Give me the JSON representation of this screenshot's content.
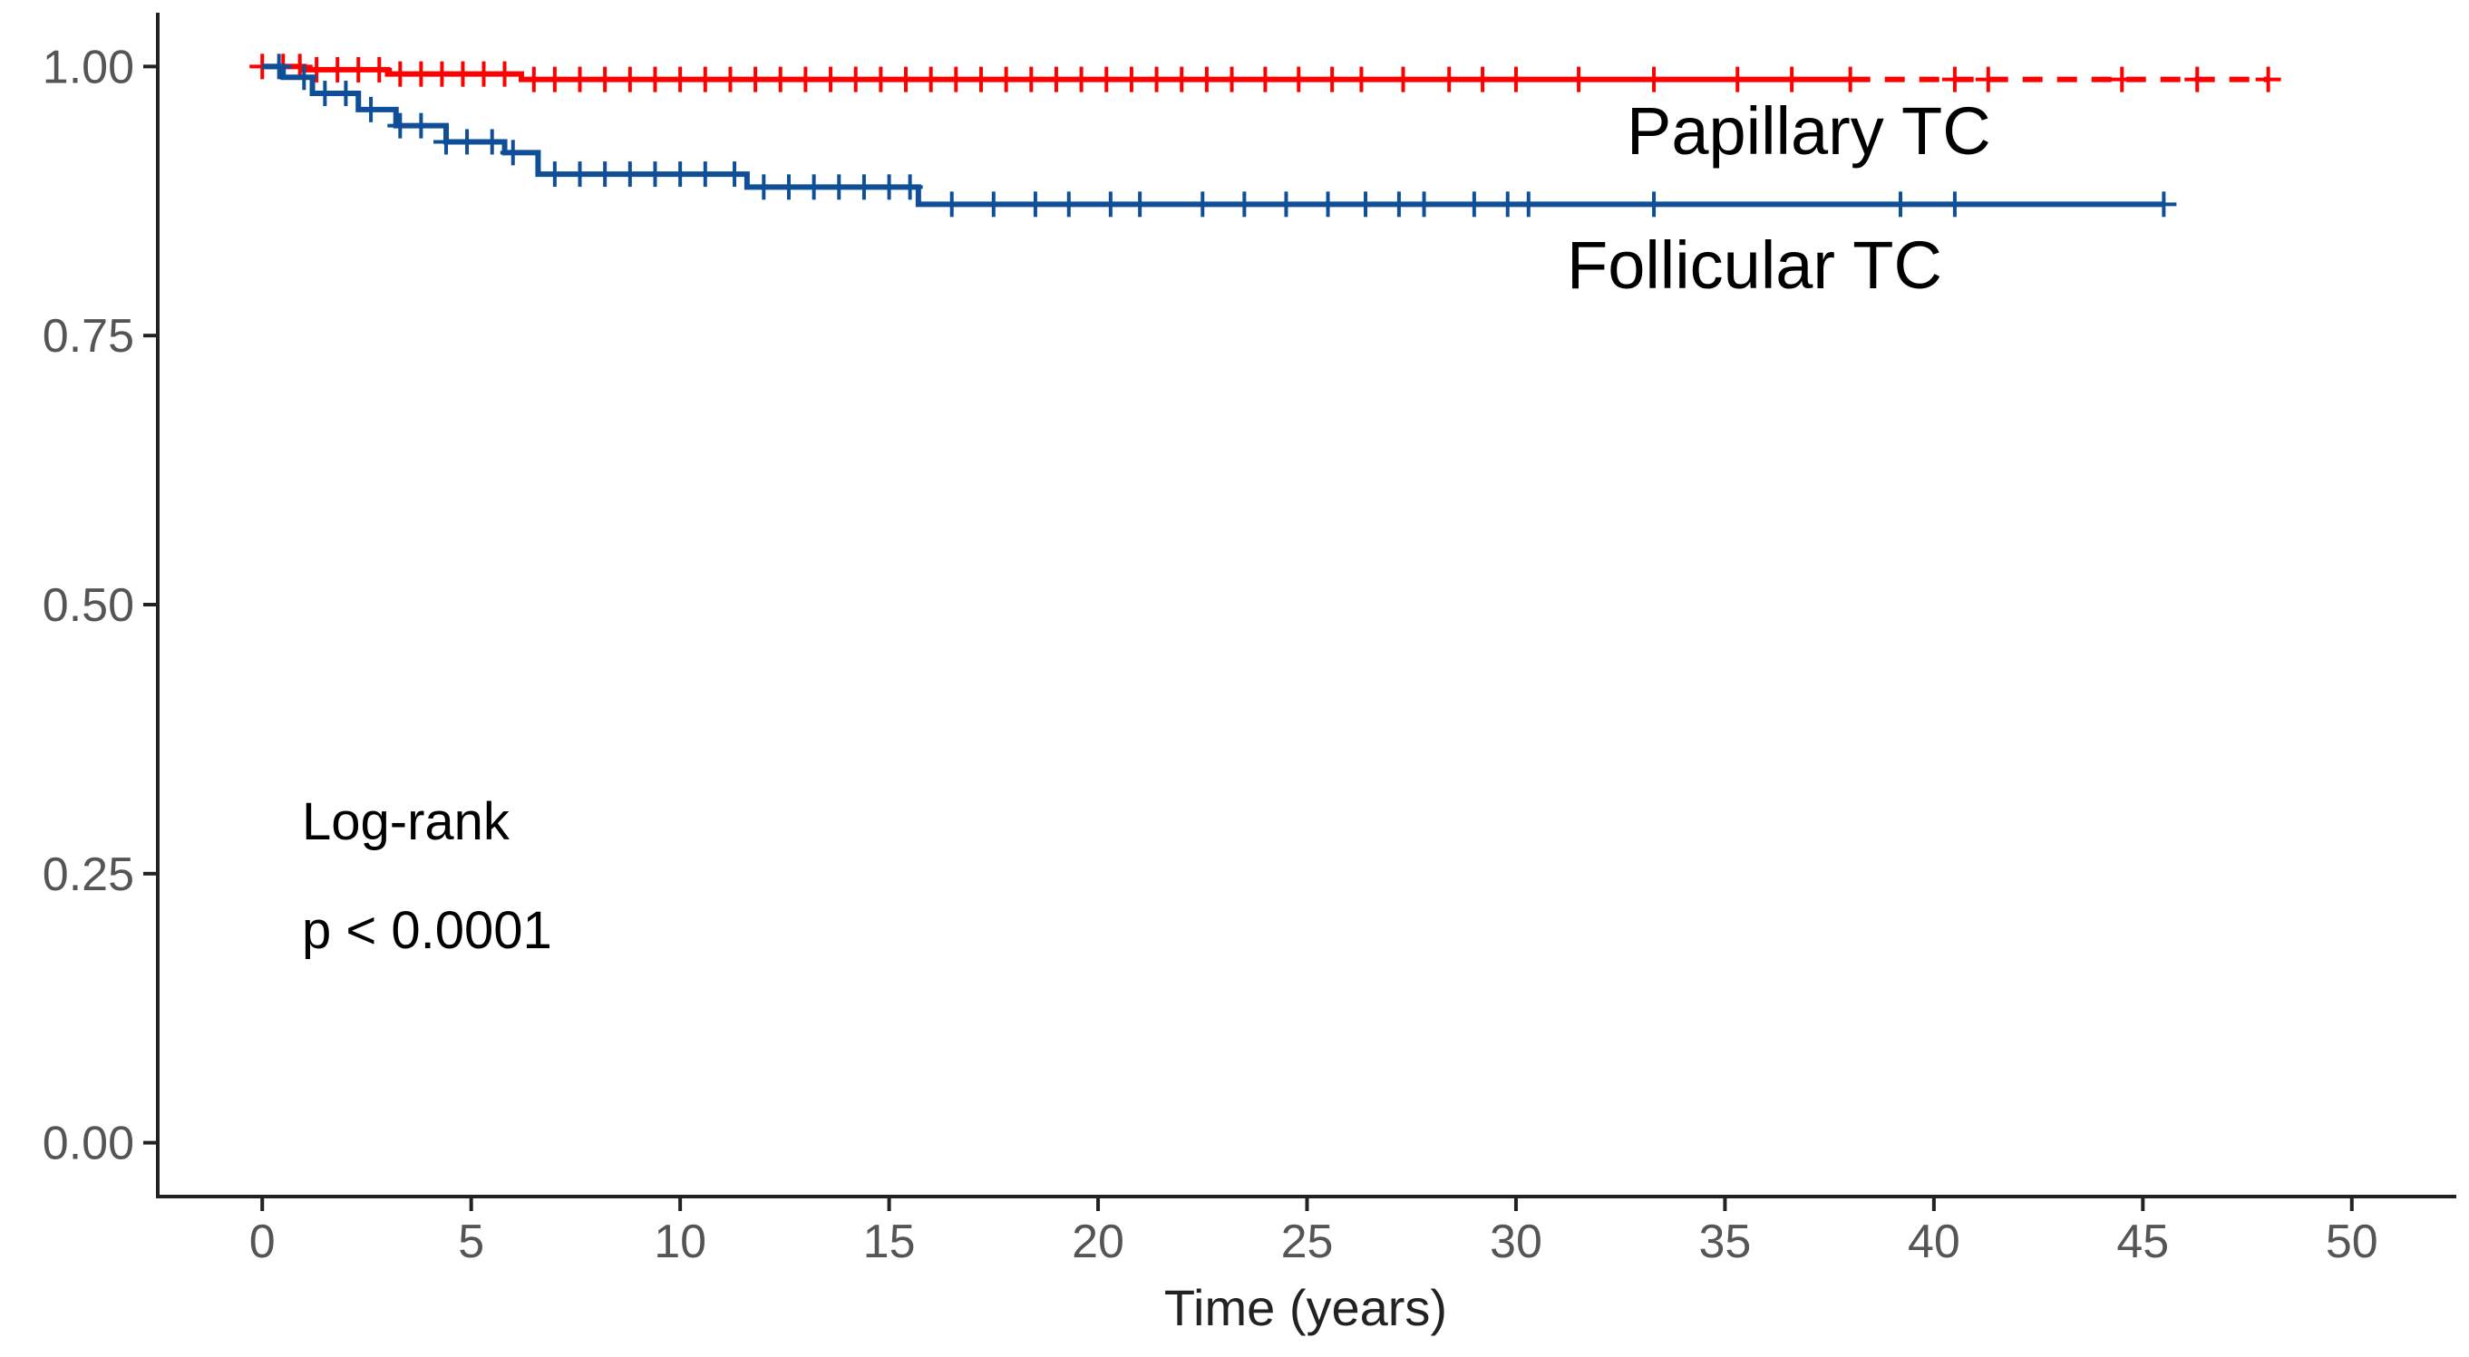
{
  "chart_data": {
    "type": "line",
    "xlabel": "Time (years)",
    "ylabel": "",
    "xlim": [
      -2.5,
      52.5
    ],
    "ylim": [
      -0.05,
      1.05
    ],
    "x_ticks": [
      0,
      5,
      10,
      15,
      20,
      25,
      30,
      35,
      40,
      45,
      50
    ],
    "x_tick_labels": [
      "0",
      "5",
      "10",
      "15",
      "20",
      "25",
      "30",
      "35",
      "40",
      "45",
      "50"
    ],
    "y_ticks": [
      0.0,
      0.25,
      0.5,
      0.75,
      1.0
    ],
    "y_tick_labels": [
      "0.00",
      "0.25",
      "0.50",
      "0.75",
      "1.00"
    ],
    "grid": false,
    "legend": "none",
    "series": [
      {
        "name": "Papillary TC",
        "color": "#ff0000",
        "line_style": "dashed-after-last-event",
        "steps": [
          [
            0,
            1.0
          ],
          [
            1.0,
            0.997
          ],
          [
            3.0,
            0.993
          ],
          [
            6.2,
            0.988
          ],
          [
            48.0,
            0.988
          ]
        ],
        "censor_times": [
          0,
          0.5,
          0.9,
          1.3,
          1.8,
          2.3,
          2.8,
          3.3,
          3.8,
          4.3,
          4.8,
          5.3,
          5.8,
          6.5,
          7.0,
          7.6,
          8.2,
          8.8,
          9.4,
          10.0,
          10.6,
          11.2,
          11.8,
          12.4,
          13.0,
          13.6,
          14.2,
          14.8,
          15.4,
          16.0,
          16.6,
          17.2,
          17.8,
          18.4,
          19.0,
          19.6,
          20.2,
          20.8,
          21.4,
          22.0,
          22.6,
          23.2,
          24.0,
          24.8,
          25.6,
          26.3,
          27.3,
          28.4,
          29.2,
          30.0,
          31.5,
          33.3,
          35.3,
          36.6,
          38.0,
          40.5,
          41.3,
          44.5,
          46.3,
          48.0
        ]
      },
      {
        "name": "Follicular TC",
        "color": "#0f4f97",
        "line_style": "solid",
        "steps": [
          [
            0,
            1.0
          ],
          [
            0.5,
            0.99
          ],
          [
            1.2,
            0.975
          ],
          [
            2.3,
            0.96
          ],
          [
            3.2,
            0.945
          ],
          [
            4.4,
            0.93
          ],
          [
            5.8,
            0.92
          ],
          [
            6.6,
            0.9
          ],
          [
            11.6,
            0.888
          ],
          [
            15.7,
            0.872
          ],
          [
            45.5,
            0.872
          ]
        ],
        "censor_times": [
          0.4,
          1.0,
          1.5,
          2.0,
          2.6,
          3.3,
          3.8,
          4.4,
          4.9,
          5.5,
          6.0,
          7.0,
          7.6,
          8.2,
          8.8,
          9.4,
          10.0,
          10.6,
          11.3,
          12.0,
          12.6,
          13.2,
          13.8,
          14.4,
          15.0,
          15.5,
          16.5,
          17.5,
          18.5,
          19.3,
          20.3,
          21.0,
          22.5,
          23.5,
          24.5,
          25.5,
          26.4,
          27.2,
          27.8,
          29.0,
          29.8,
          30.3,
          33.3,
          39.2,
          40.5,
          45.5
        ]
      }
    ],
    "annotations": [
      "Log-rank",
      "p < 0.0001"
    ]
  }
}
